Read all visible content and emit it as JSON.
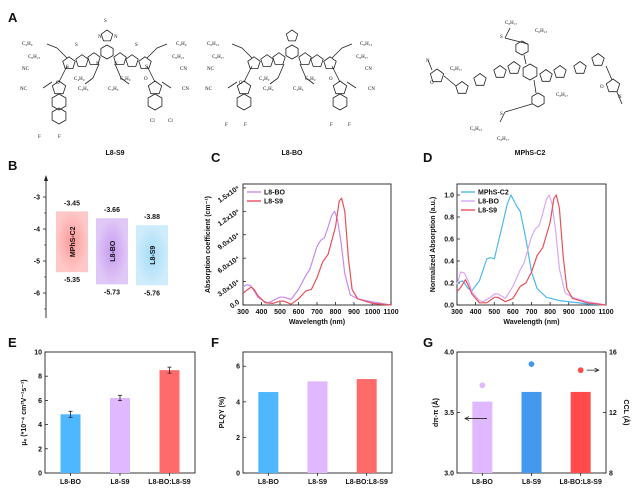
{
  "panels": {
    "A": "A",
    "B": "B",
    "C": "C",
    "D": "D",
    "E": "E",
    "F": "F",
    "G": "G"
  },
  "molecules": [
    {
      "name": "L8-S9",
      "labels": [
        "C₄H₉",
        "C₆H₁₃",
        "C₄H₉",
        "C₆H₁₃",
        "C₄H₉",
        "C₂H₅",
        "C₄H₉",
        "C₂H₅",
        "NC",
        "NC",
        "CN",
        "CN",
        "O",
        "O",
        "F",
        "F",
        "Cl",
        "Cl",
        "N",
        "N",
        "S",
        "S",
        "S",
        "S",
        "S",
        "N",
        "N"
      ]
    },
    {
      "name": "L8-BO",
      "labels": [
        "C₆H₁₃",
        "C₈H₁₇",
        "C₆H₁₃",
        "C₈H₁₇",
        "C₄H₉",
        "C₂H₅",
        "C₄H₉",
        "C₂H₅",
        "NC",
        "NC",
        "CN",
        "CN",
        "O",
        "O",
        "F",
        "F",
        "F",
        "F"
      ]
    },
    {
      "name": "MPhS-C2",
      "labels": [
        "C₈H₁₇",
        "C₆H₁₃",
        "C₆H₁₃",
        "C₈H₁₇",
        "C₈H₁₇",
        "C₈H₁₇",
        "S",
        "S",
        "N",
        "N",
        "O",
        "O"
      ]
    }
  ],
  "chart_data": [
    {
      "id": "B",
      "type": "bar",
      "title": "Energy levels",
      "ylabel": "",
      "ylim": [
        -6.8,
        -2.3
      ],
      "yticks": [
        -3,
        -4,
        -5,
        -6
      ],
      "ytick_labels": [
        "-3",
        "-4",
        "-5",
        "-6"
      ],
      "bars": [
        {
          "name": "MPhS-C2",
          "lumo": -3.45,
          "homo": -5.35,
          "lumo_label": "-3.45",
          "homo_label": "-5.35",
          "color": "#ff9a9a"
        },
        {
          "name": "L8-BO",
          "lumo": -3.66,
          "homo": -5.73,
          "lumo_label": "-3.66",
          "homo_label": "-5.73",
          "color": "#c79cf0"
        },
        {
          "name": "L8-S9",
          "lumo": -3.88,
          "homo": -5.76,
          "lumo_label": "-3.88",
          "homo_label": "-5.76",
          "color": "#a6dcf8"
        }
      ]
    },
    {
      "id": "C",
      "type": "line",
      "xlabel": "Wavelength (nm)",
      "ylabel": "Absorption coefficient (cm⁻¹)",
      "xlim": [
        300,
        1100
      ],
      "ylim": [
        0,
        155000
      ],
      "xticks": [
        300,
        400,
        500,
        600,
        700,
        800,
        900,
        1000,
        1100
      ],
      "xtick_labels": [
        "300",
        "400",
        "500",
        "600",
        "700",
        "800",
        "900",
        "1000",
        "1100"
      ],
      "yticks": [
        0,
        30000,
        60000,
        90000,
        120000,
        150000
      ],
      "ytick_labels": [
        "0.0",
        "3.0x10⁴",
        "6.0x10⁴",
        "9.0x10⁴",
        "1.2x10⁵",
        "1.5x10⁵"
      ],
      "legend": "top-left",
      "series": [
        {
          "name": "L8-BO",
          "color": "#c98af0",
          "x": [
            300,
            320,
            340,
            360,
            380,
            420,
            440,
            480,
            500,
            520,
            560,
            600,
            640,
            660,
            700,
            720,
            740,
            760,
            780,
            795,
            810,
            830,
            850,
            880,
            920,
            1000,
            1100
          ],
          "y": [
            23000,
            26000,
            25000,
            18000,
            10000,
            4000,
            3000,
            8000,
            10000,
            10000,
            7000,
            20000,
            38000,
            45000,
            75000,
            83000,
            86000,
            100000,
            115000,
            120000,
            110000,
            80000,
            40000,
            13000,
            8000,
            4000,
            0
          ]
        },
        {
          "name": "L8-S9",
          "color": "#e8505a",
          "x": [
            300,
            320,
            345,
            360,
            380,
            420,
            460,
            500,
            520,
            560,
            600,
            640,
            670,
            700,
            730,
            760,
            800,
            820,
            833,
            850,
            870,
            890,
            920,
            1000,
            1100
          ],
          "y": [
            15000,
            19000,
            23000,
            20000,
            12000,
            3000,
            2000,
            5000,
            5000,
            1000,
            8000,
            18000,
            20000,
            35000,
            55000,
            65000,
            100000,
            133000,
            137000,
            120000,
            60000,
            20000,
            8000,
            2000,
            0
          ]
        }
      ]
    },
    {
      "id": "D",
      "type": "line",
      "xlabel": "Wavelength (nm)",
      "ylabel": "Normalized Absorption (a.u.)",
      "xlim": [
        300,
        1100
      ],
      "ylim": [
        0,
        1.1
      ],
      "xticks": [
        300,
        400,
        500,
        600,
        700,
        800,
        900,
        1000,
        1100
      ],
      "xtick_labels": [
        "300",
        "400",
        "500",
        "600",
        "700",
        "800",
        "900",
        "1000",
        "1100"
      ],
      "yticks": [
        0,
        0.2,
        0.4,
        0.6,
        0.8,
        1.0
      ],
      "ytick_labels": [
        "0.0",
        "0.2",
        "0.4",
        "0.6",
        "0.8",
        "1.0"
      ],
      "legend": "top-left",
      "series": [
        {
          "name": "MPhS-C2",
          "color": "#4fb8e8",
          "x": [
            300,
            330,
            360,
            380,
            420,
            460,
            480,
            500,
            540,
            570,
            590,
            620,
            640,
            670,
            700,
            730,
            780,
            850,
            1000,
            1100
          ],
          "y": [
            0.2,
            0.22,
            0.15,
            0.13,
            0.22,
            0.42,
            0.43,
            0.42,
            0.7,
            0.92,
            1.0,
            0.9,
            0.85,
            0.6,
            0.3,
            0.15,
            0.07,
            0.04,
            0.01,
            0
          ]
        },
        {
          "name": "L8-BO",
          "color": "#d9a8f5",
          "x": [
            300,
            320,
            340,
            360,
            380,
            420,
            440,
            480,
            500,
            520,
            560,
            600,
            640,
            660,
            700,
            720,
            740,
            760,
            780,
            795,
            810,
            830,
            850,
            880,
            920,
            1000,
            1100
          ],
          "y": [
            0.19,
            0.3,
            0.29,
            0.22,
            0.12,
            0.04,
            0.03,
            0.07,
            0.1,
            0.1,
            0.06,
            0.17,
            0.32,
            0.38,
            0.62,
            0.69,
            0.72,
            0.83,
            0.96,
            1.0,
            0.92,
            0.67,
            0.33,
            0.11,
            0.07,
            0.03,
            0
          ]
        },
        {
          "name": "L8-S9",
          "color": "#e8505a",
          "x": [
            300,
            320,
            345,
            360,
            380,
            420,
            460,
            500,
            520,
            560,
            600,
            640,
            670,
            700,
            730,
            760,
            800,
            820,
            833,
            850,
            870,
            890,
            920,
            1000,
            1100
          ],
          "y": [
            0.12,
            0.16,
            0.23,
            0.18,
            0.1,
            0.02,
            0.02,
            0.07,
            0.07,
            0.03,
            0.06,
            0.17,
            0.2,
            0.3,
            0.45,
            0.52,
            0.75,
            0.97,
            1.0,
            0.88,
            0.44,
            0.15,
            0.06,
            0.02,
            0
          ]
        }
      ]
    },
    {
      "id": "E",
      "type": "bar",
      "ylabel": "μₑ (*10⁻⁴ cm²V⁻¹s⁻¹)",
      "ylim": [
        0,
        10
      ],
      "yticks": [
        0,
        2,
        4,
        6,
        8,
        10
      ],
      "ytick_labels": [
        "0",
        "2",
        "4",
        "6",
        "8",
        "10"
      ],
      "categories": [
        "L8-BO",
        "L8-S9",
        "L8-BO:L8-S9"
      ],
      "values": [
        4.85,
        6.2,
        8.5
      ],
      "errors": [
        0.25,
        0.22,
        0.25
      ],
      "colors": [
        "#4db8ff",
        "#e0b8ff",
        "#ff6b6b"
      ]
    },
    {
      "id": "F",
      "type": "bar",
      "ylabel": "PLQY (%)",
      "ylim": [
        0,
        6.8
      ],
      "yticks": [
        0,
        2,
        4,
        6
      ],
      "ytick_labels": [
        "0",
        "2",
        "4",
        "6"
      ],
      "categories": [
        "L8-BO",
        "L8-S9",
        "L8-BO:L8-S9"
      ],
      "values": [
        4.55,
        5.15,
        5.28
      ],
      "colors": [
        "#4db8ff",
        "#e0b8ff",
        "#ff6b6b"
      ]
    },
    {
      "id": "G",
      "type": "bar",
      "ylabel": "dπ-π (Å)",
      "y2label": "CCL (Å)",
      "ylim": [
        3.0,
        4.0
      ],
      "yticks": [
        3.0,
        3.5,
        4.0
      ],
      "ytick_labels": [
        "3.0",
        "3.5",
        "4.0"
      ],
      "y2lim": [
        8,
        16
      ],
      "y2ticks": [
        8,
        12,
        16
      ],
      "y2tick_labels": [
        "8",
        "12",
        "16"
      ],
      "categories": [
        "L8-BO",
        "L8-S9",
        "L8-BO:L8-S9"
      ],
      "values": [
        3.59,
        3.67,
        3.67
      ],
      "ccl": [
        13.8,
        15.2,
        14.8
      ],
      "colors": [
        "#e0b8ff",
        "#4499ee",
        "#ff4b4b"
      ]
    }
  ]
}
